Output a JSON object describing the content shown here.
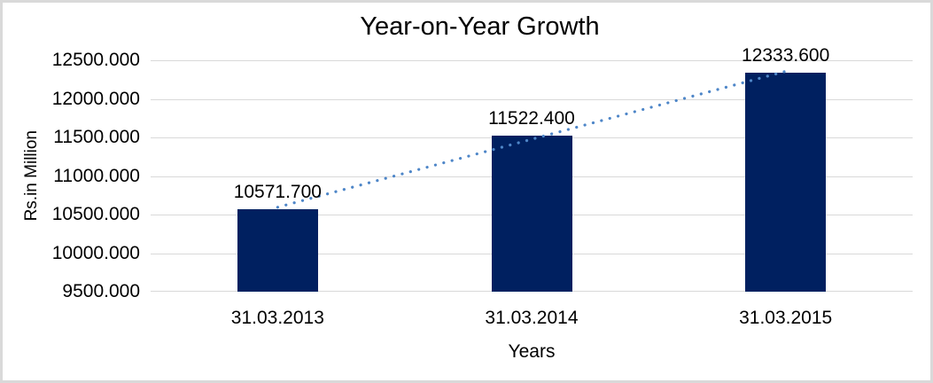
{
  "chart_data": {
    "type": "bar",
    "title": "Year-on-Year Growth",
    "xlabel": "Years",
    "ylabel": "Rs.in Million",
    "categories": [
      "31.03.2013",
      "31.03.2014",
      "31.03.2015"
    ],
    "values": [
      10571.7,
      11522.4,
      12333.6
    ],
    "data_labels": [
      "10571.700",
      "11522.400",
      "12333.600"
    ],
    "ytick_labels": [
      "12500.000",
      "12000.000",
      "11500.000",
      "11000.000",
      "10500.000",
      "10000.000",
      "9500.000"
    ],
    "ylim": [
      9500,
      12500
    ],
    "ytick_step": 500,
    "grid": true,
    "legend": "none",
    "trendline": "linear-dotted",
    "colors": {
      "bar": "#002060",
      "trendline": "#4e86c8",
      "gridline": "#d9d9d9",
      "chart_border": "#d9d9d9",
      "text": "#000000",
      "background": "#ffffff"
    }
  }
}
